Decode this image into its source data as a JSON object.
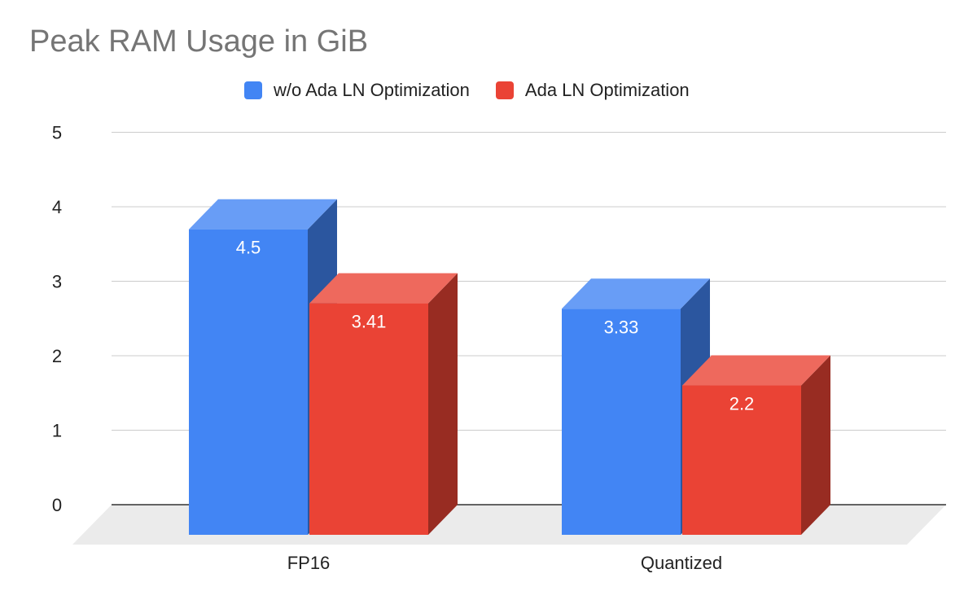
{
  "chart_data": {
    "type": "bar",
    "title": "Peak RAM Usage in GiB",
    "categories": [
      "FP16",
      "Quantized"
    ],
    "series": [
      {
        "name": "w/o Ada LN Optimization",
        "values": [
          4.5,
          3.33
        ],
        "labels": [
          "4.5",
          "3.33"
        ],
        "color": "#4285f4"
      },
      {
        "name": "Ada LN Optimization",
        "values": [
          3.41,
          2.2
        ],
        "labels": [
          "3.41",
          "2.2"
        ],
        "color": "#ea4335"
      }
    ],
    "y_ticks": [
      "0",
      "1",
      "2",
      "3",
      "4",
      "5"
    ],
    "ylim": [
      0,
      5
    ],
    "xlabel": "",
    "ylabel": "",
    "grid": true,
    "legend_position": "top",
    "style": "3d"
  }
}
